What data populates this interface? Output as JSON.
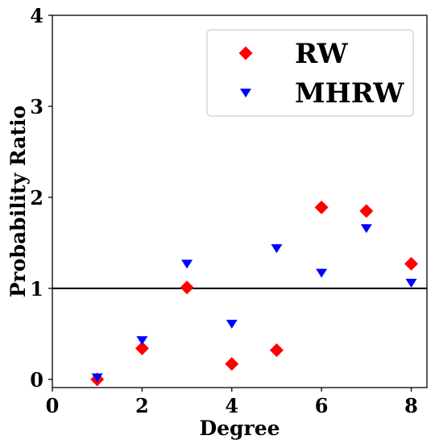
{
  "chart_data": {
    "type": "scatter",
    "xlabel": "Degree",
    "ylabel": "Probability Ratio",
    "xlim": [
      0,
      8.35
    ],
    "ylim": [
      -0.09,
      4
    ],
    "xticks": [
      0,
      2,
      4,
      6,
      8
    ],
    "yticks": [
      0,
      1,
      2,
      3,
      4
    ],
    "grid": false,
    "legend_position": "top-right",
    "reference_line": {
      "y": 1,
      "color": "#000000"
    },
    "series": [
      {
        "name": "RW",
        "marker": "diamond",
        "color": "#ff0000",
        "points": [
          {
            "x": 1,
            "y": 0.0
          },
          {
            "x": 2,
            "y": 0.34
          },
          {
            "x": 3,
            "y": 1.01
          },
          {
            "x": 4,
            "y": 0.17
          },
          {
            "x": 5,
            "y": 0.32
          },
          {
            "x": 6,
            "y": 1.89
          },
          {
            "x": 7,
            "y": 1.85
          },
          {
            "x": 8,
            "y": 1.27
          }
        ]
      },
      {
        "name": "MHRW",
        "marker": "triangle-down",
        "color": "#0000ff",
        "points": [
          {
            "x": 1,
            "y": 0.02
          },
          {
            "x": 2,
            "y": 0.43
          },
          {
            "x": 3,
            "y": 1.27
          },
          {
            "x": 4,
            "y": 0.61
          },
          {
            "x": 5,
            "y": 1.44
          },
          {
            "x": 6,
            "y": 1.17
          },
          {
            "x": 7,
            "y": 1.66
          },
          {
            "x": 8,
            "y": 1.06
          }
        ]
      }
    ]
  }
}
